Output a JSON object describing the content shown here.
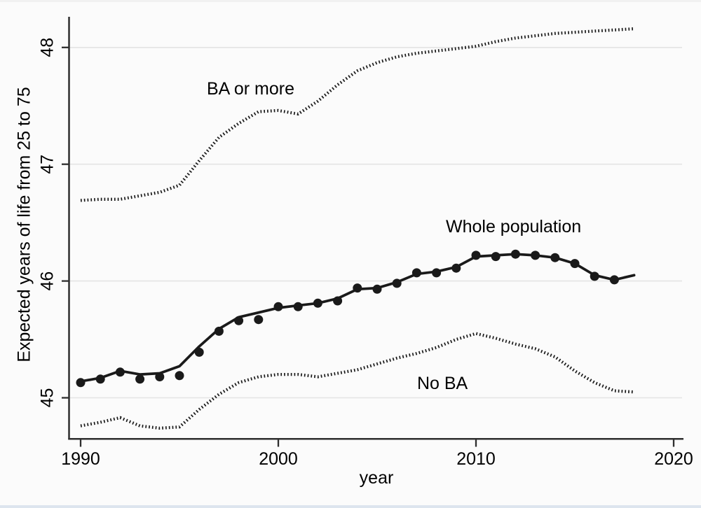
{
  "chart_data": {
    "type": "line",
    "title": "",
    "xlabel": "year",
    "ylabel": "Expected years of life from 25 to 75",
    "x": [
      1990,
      1991,
      1992,
      1993,
      1994,
      1995,
      1996,
      1997,
      1998,
      1999,
      2000,
      2001,
      2002,
      2003,
      2004,
      2005,
      2006,
      2007,
      2008,
      2009,
      2010,
      2011,
      2012,
      2013,
      2014,
      2015,
      2016,
      2017,
      2018
    ],
    "series": [
      {
        "name": "BA or more",
        "style": "dotted",
        "values": [
          46.69,
          46.7,
          46.7,
          46.73,
          46.76,
          46.82,
          47.03,
          47.23,
          47.35,
          47.45,
          47.46,
          47.43,
          47.54,
          47.68,
          47.8,
          47.87,
          47.92,
          47.95,
          47.97,
          47.99,
          48.01,
          48.05,
          48.08,
          48.1,
          48.12,
          48.13,
          48.14,
          48.15,
          48.16
        ]
      },
      {
        "name": "Whole population (fitted line)",
        "style": "solid",
        "values": [
          45.14,
          45.17,
          45.23,
          45.2,
          45.21,
          45.27,
          45.44,
          45.59,
          45.69,
          45.73,
          45.77,
          45.79,
          45.81,
          45.85,
          45.93,
          45.94,
          45.99,
          46.06,
          46.08,
          46.12,
          46.21,
          46.22,
          46.23,
          46.22,
          46.2,
          46.15,
          46.05,
          46.01,
          46.05
        ]
      },
      {
        "name": "Whole population (data points)",
        "style": "scatter",
        "values": [
          45.13,
          45.16,
          45.22,
          45.16,
          45.18,
          45.19,
          45.39,
          45.57,
          45.66,
          45.67,
          45.78,
          45.78,
          45.81,
          45.83,
          45.94,
          45.93,
          45.98,
          46.07,
          46.07,
          46.11,
          46.22,
          46.21,
          46.23,
          46.22,
          46.2,
          46.15,
          46.04,
          46.01
        ]
      },
      {
        "name": "No BA",
        "style": "dotted",
        "values": [
          44.76,
          44.79,
          44.83,
          44.76,
          44.74,
          44.75,
          44.9,
          45.03,
          45.13,
          45.18,
          45.2,
          45.2,
          45.18,
          45.21,
          45.24,
          45.29,
          45.34,
          45.38,
          45.43,
          45.5,
          45.55,
          45.51,
          45.46,
          45.42,
          45.35,
          45.23,
          45.13,
          45.06,
          45.05
        ]
      }
    ],
    "annotations": [
      {
        "text": "BA or more",
        "x": 1998.6,
        "y": 47.65
      },
      {
        "text": "Whole population",
        "x": 2011.9,
        "y": 46.47
      },
      {
        "text": "No BA",
        "x": 2008.3,
        "y": 45.13
      }
    ],
    "x_ticks": [
      1990,
      2000,
      2010,
      2020
    ],
    "y_ticks": [
      45,
      46,
      47,
      48
    ],
    "xlim": [
      1989.4,
      2020.5
    ],
    "ylim": [
      44.65,
      48.3
    ],
    "grid": "horizontal",
    "legend": "none (series labeled directly on plot)",
    "colors": {
      "line": "#1a1a1a",
      "grid": "#e4e4e4",
      "axis": "#2e2e2e",
      "text": "#000000",
      "background": "#fbfbfb",
      "footer_strip": "#dde5ee"
    }
  }
}
